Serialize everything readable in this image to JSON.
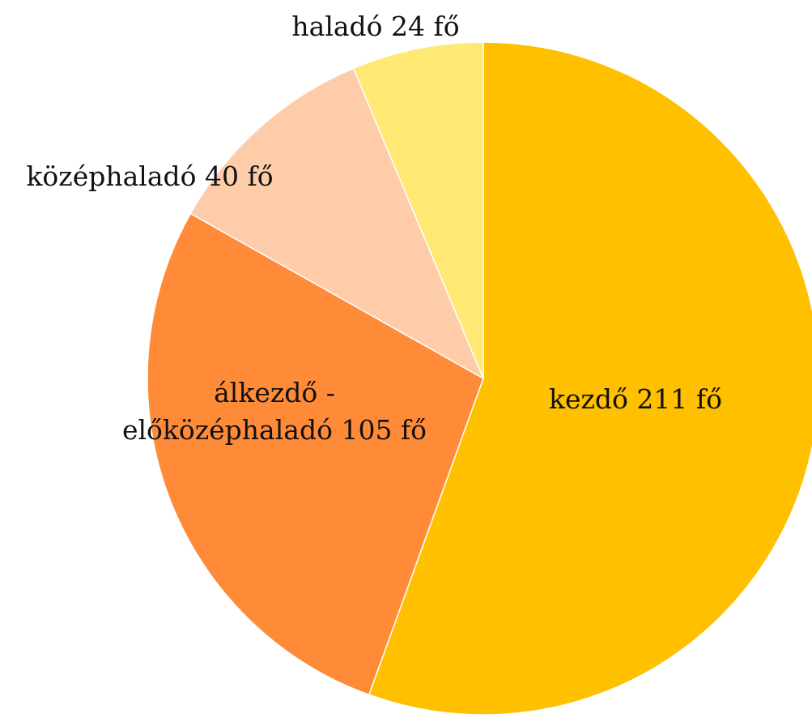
{
  "chart_data": {
    "type": "pie",
    "categories": [
      "kezdő",
      [
        "álkezdő -",
        "előközéphaladó"
      ],
      "középhaladó",
      "haladó"
    ],
    "values": [
      211,
      105,
      40,
      24
    ],
    "value_labels": [
      "211 fő",
      "105 fő",
      "40 fő",
      "24 fő"
    ],
    "colors": [
      "#FFC000",
      "#FF8B39",
      "#FFCCAA",
      "#FFE873"
    ]
  }
}
